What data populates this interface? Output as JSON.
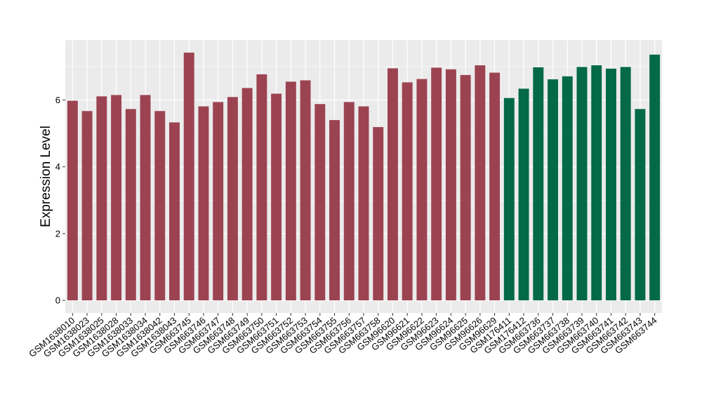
{
  "chart_data": {
    "type": "bar",
    "title": "",
    "xlabel": "",
    "ylabel": "Expression Level",
    "ylim": [
      0,
      7.55
    ],
    "yticks": [
      0,
      2,
      4,
      6
    ],
    "grid": true,
    "legend": "none",
    "colors": {
      "group1": "#9C4351",
      "group2": "#036946",
      "panel_bg": "#EBEBEB",
      "grid": "#FFFFFF"
    },
    "categories": [
      "GSM1638010",
      "GSM1638023",
      "GSM1638025",
      "GSM1638028",
      "GSM1638033",
      "GSM1638034",
      "GSM1638042",
      "GSM1638043",
      "GSM663745",
      "GSM663746",
      "GSM663747",
      "GSM663748",
      "GSM663749",
      "GSM663750",
      "GSM663751",
      "GSM663752",
      "GSM663753",
      "GSM663754",
      "GSM663755",
      "GSM663756",
      "GSM663757",
      "GSM663758",
      "GSM96620",
      "GSM96621",
      "GSM96622",
      "GSM96623",
      "GSM96624",
      "GSM96625",
      "GSM96626",
      "GSM96629",
      "GSM176411",
      "GSM176412",
      "GSM663736",
      "GSM663737",
      "GSM663738",
      "GSM663739",
      "GSM663740",
      "GSM663741",
      "GSM663742",
      "GSM663743",
      "GSM663744"
    ],
    "values": [
      5.98,
      5.67,
      6.11,
      6.15,
      5.73,
      6.15,
      5.67,
      5.33,
      7.42,
      5.81,
      5.94,
      6.09,
      6.36,
      6.77,
      6.19,
      6.55,
      6.59,
      5.88,
      5.4,
      5.94,
      5.81,
      5.19,
      6.95,
      6.53,
      6.63,
      6.97,
      6.92,
      6.75,
      7.04,
      6.82,
      6.06,
      6.34,
      6.98,
      6.62,
      6.71,
      6.99,
      7.04,
      6.94,
      6.99,
      5.73,
      7.36
    ],
    "groups": [
      1,
      1,
      1,
      1,
      1,
      1,
      1,
      1,
      1,
      1,
      1,
      1,
      1,
      1,
      1,
      1,
      1,
      1,
      1,
      1,
      1,
      1,
      1,
      1,
      1,
      1,
      1,
      1,
      1,
      1,
      2,
      2,
      2,
      2,
      2,
      2,
      2,
      2,
      2,
      2,
      2
    ]
  }
}
